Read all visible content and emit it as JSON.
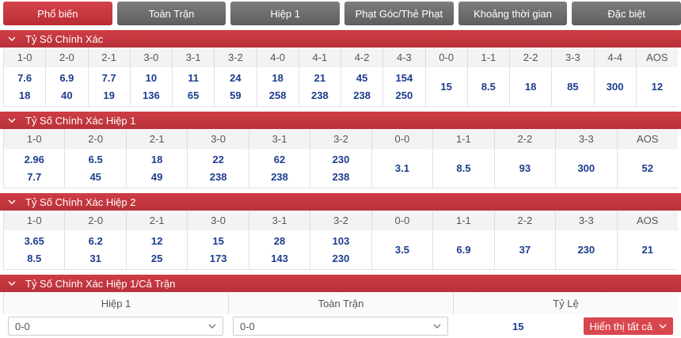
{
  "tabs": [
    "Phổ biến",
    "Toàn Trận",
    "Hiệp 1",
    "Phạt Góc/Thẻ Phạt",
    "Khoảng thời gian",
    "Đặc biệt"
  ],
  "sections": [
    {
      "title": "Tỷ Số Chính Xác",
      "headers": [
        "1-0",
        "2-0",
        "2-1",
        "3-0",
        "3-1",
        "3-2",
        "4-0",
        "4-1",
        "4-2",
        "4-3",
        "0-0",
        "1-1",
        "2-2",
        "3-3",
        "4-4",
        "AOS"
      ],
      "cells": [
        [
          7.6,
          18
        ],
        [
          6.9,
          40
        ],
        [
          7.7,
          19
        ],
        [
          10,
          136
        ],
        [
          11,
          65
        ],
        [
          24,
          59
        ],
        [
          18,
          258
        ],
        [
          21,
          238
        ],
        [
          45,
          238
        ],
        [
          154,
          250
        ],
        [
          15
        ],
        [
          8.5
        ],
        [
          18
        ],
        [
          85
        ],
        [
          300
        ],
        [
          12
        ]
      ]
    },
    {
      "title": "Tỷ Số Chính Xác Hiệp 1",
      "headers": [
        "1-0",
        "2-0",
        "2-1",
        "3-0",
        "3-1",
        "3-2",
        "0-0",
        "1-1",
        "2-2",
        "3-3",
        "AOS"
      ],
      "cells": [
        [
          2.96,
          7.7
        ],
        [
          6.5,
          45
        ],
        [
          18,
          49
        ],
        [
          22,
          238
        ],
        [
          62,
          238
        ],
        [
          230,
          238
        ],
        [
          3.1
        ],
        [
          8.5
        ],
        [
          93
        ],
        [
          300
        ],
        [
          52
        ]
      ]
    },
    {
      "title": "Tỷ Số Chính Xác Hiệp 2",
      "headers": [
        "1-0",
        "2-0",
        "2-1",
        "3-0",
        "3-1",
        "3-2",
        "0-0",
        "1-1",
        "2-2",
        "3-3",
        "AOS"
      ],
      "cells": [
        [
          3.65,
          8.5
        ],
        [
          6.2,
          31
        ],
        [
          12,
          25
        ],
        [
          15,
          173
        ],
        [
          28,
          143
        ],
        [
          103,
          230
        ],
        [
          3.5
        ],
        [
          6.9
        ],
        [
          37
        ],
        [
          230
        ],
        [
          21
        ]
      ]
    }
  ],
  "combo": {
    "title": "Tỷ Số Chính Xác Hiệp 1/Cả Trận",
    "headers": [
      "Hiệp 1",
      "Toàn Trận",
      "Tỷ Lệ"
    ],
    "selects": [
      "0-0",
      "0-0"
    ],
    "odds": 15,
    "button": "Hiển thị tất cả"
  }
}
